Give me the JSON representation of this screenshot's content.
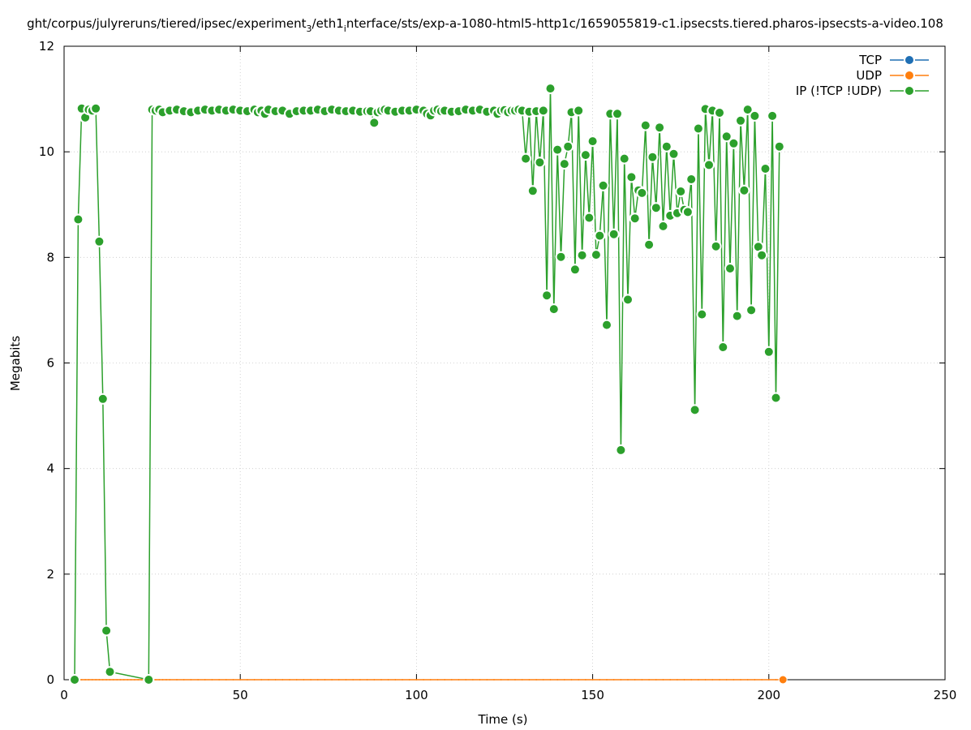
{
  "chart_data": {
    "type": "line",
    "title": "ght/corpus/julyreruns/tiered/ipsec/experiment",
    "title_sub": "3",
    "title_mid": "/eth1",
    "title_sub2": "i",
    "title_end": "nterface/sts/exp-a-1080-html5-http1c/1659055819-c1.ipsecsts.tiered.pharos-ipsecsts-a-video.108",
    "xlabel": "Time (s)",
    "ylabel": "Megabits",
    "xlim": [
      0,
      250
    ],
    "ylim": [
      0,
      12
    ],
    "xticks": [
      0,
      50,
      100,
      150,
      200,
      250
    ],
    "yticks": [
      0,
      2,
      4,
      6,
      8,
      10,
      12
    ],
    "grid": true,
    "legend_position": "top-right",
    "series": [
      {
        "name": "TCP",
        "color": "#1f6fb4",
        "x": [],
        "y": []
      },
      {
        "name": "UDP",
        "color": "#ff7f0e",
        "x": [
          4,
          5,
          6,
          7,
          8,
          9,
          10,
          11,
          12,
          13,
          14,
          15,
          16,
          17,
          18,
          19,
          20,
          21,
          22,
          23,
          24,
          25,
          26,
          27,
          28,
          29,
          30,
          32,
          34,
          36,
          38,
          40,
          42,
          44,
          46,
          48,
          50,
          52,
          54,
          56,
          58,
          60,
          62,
          64,
          66,
          68,
          70,
          72,
          74,
          76,
          78,
          80,
          82,
          84,
          86,
          88,
          90,
          92,
          94,
          96,
          98,
          100,
          102,
          104,
          106,
          108,
          110,
          112,
          114,
          116,
          118,
          120,
          122,
          124,
          126,
          128,
          130,
          132,
          134,
          136,
          138,
          140,
          142,
          144,
          146,
          148,
          150,
          152,
          154,
          156,
          158,
          160,
          162,
          164,
          166,
          168,
          170,
          172,
          174,
          176,
          178,
          180,
          182,
          184,
          186,
          188,
          190,
          192,
          194,
          196,
          198,
          200,
          202,
          204
        ],
        "y": [
          0,
          0,
          0,
          0,
          0,
          0,
          0,
          0,
          0,
          0,
          0,
          0,
          0,
          0,
          0,
          0,
          0,
          0,
          0,
          0,
          0,
          0,
          0,
          0,
          0,
          0,
          0,
          0,
          0,
          0,
          0,
          0,
          0,
          0,
          0,
          0,
          0,
          0,
          0,
          0,
          0,
          0,
          0,
          0,
          0,
          0,
          0,
          0,
          0,
          0,
          0,
          0,
          0,
          0,
          0,
          0,
          0,
          0,
          0,
          0,
          0,
          0,
          0,
          0,
          0,
          0,
          0,
          0,
          0,
          0,
          0,
          0,
          0,
          0,
          0,
          0,
          0,
          0,
          0,
          0,
          0,
          0,
          0,
          0,
          0,
          0,
          0,
          0,
          0,
          0,
          0,
          0,
          0,
          0,
          0,
          0,
          0,
          0,
          0,
          0,
          0,
          0,
          0,
          0,
          0,
          0,
          0,
          0,
          0,
          0,
          0,
          0,
          0,
          0
        ]
      },
      {
        "name": "IP (!TCP  !UDP)",
        "color": "#2ca02c",
        "x": [
          3,
          4,
          5,
          6,
          7,
          8,
          9,
          10,
          11,
          12,
          13,
          24,
          25,
          26,
          27,
          28,
          30,
          32,
          34,
          36,
          38,
          40,
          42,
          44,
          46,
          48,
          50,
          52,
          54,
          55,
          56,
          57,
          58,
          60,
          62,
          64,
          66,
          68,
          70,
          72,
          74,
          76,
          78,
          80,
          82,
          84,
          86,
          87,
          88,
          89,
          90,
          91,
          92,
          94,
          96,
          98,
          100,
          102,
          103,
          104,
          105,
          106,
          107,
          108,
          110,
          112,
          114,
          116,
          118,
          120,
          122,
          123,
          124,
          125,
          126,
          127,
          128,
          129,
          130,
          131,
          132,
          133,
          134,
          135,
          136,
          137,
          138,
          139,
          140,
          141,
          142,
          143,
          144,
          145,
          146,
          147,
          148,
          149,
          150,
          151,
          152,
          153,
          154,
          155,
          156,
          157,
          158,
          159,
          160,
          161,
          162,
          163,
          164,
          165,
          166,
          167,
          168,
          169,
          170,
          171,
          172,
          173,
          174,
          175,
          176,
          177,
          178,
          179,
          180,
          181,
          182,
          183,
          184,
          185,
          186,
          187,
          188,
          189,
          190,
          191,
          192,
          193,
          194,
          195,
          196,
          197,
          198,
          199,
          200,
          201,
          202,
          203
        ],
        "y": [
          0,
          8.72,
          10.82,
          10.65,
          10.8,
          10.78,
          10.82,
          8.3,
          5.32,
          0.93,
          0.15,
          0,
          10.8,
          10.78,
          10.8,
          10.75,
          10.78,
          10.8,
          10.77,
          10.75,
          10.78,
          10.8,
          10.78,
          10.8,
          10.78,
          10.8,
          10.78,
          10.77,
          10.8,
          10.75,
          10.78,
          10.72,
          10.8,
          10.77,
          10.78,
          10.72,
          10.77,
          10.78,
          10.78,
          10.8,
          10.77,
          10.8,
          10.78,
          10.77,
          10.78,
          10.76,
          10.77,
          10.77,
          10.55,
          10.75,
          10.78,
          10.8,
          10.78,
          10.76,
          10.78,
          10.78,
          10.8,
          10.78,
          10.72,
          10.69,
          10.78,
          10.8,
          10.77,
          10.78,
          10.76,
          10.77,
          10.8,
          10.78,
          10.8,
          10.76,
          10.78,
          10.72,
          10.78,
          10.79,
          10.75,
          10.78,
          10.78,
          10.8,
          10.78,
          9.87,
          10.76,
          9.26,
          10.77,
          9.8,
          10.78,
          7.28,
          11.2,
          7.02,
          10.04,
          8.01,
          9.77,
          10.1,
          10.75,
          7.77,
          10.78,
          8.04,
          9.94,
          8.75,
          10.2,
          8.05,
          8.41,
          9.36,
          6.72,
          10.72,
          8.44,
          10.72,
          4.35,
          9.87,
          7.2,
          9.52,
          8.74,
          9.27,
          9.22,
          10.5,
          8.24,
          9.9,
          8.94,
          10.46,
          8.59,
          10.1,
          8.79,
          9.96,
          8.84,
          9.25,
          8.9,
          8.86,
          9.48,
          5.11,
          10.44,
          6.92,
          10.81,
          9.75,
          10.78,
          8.21,
          10.74,
          6.3,
          10.29,
          7.79,
          10.16,
          6.89,
          10.59,
          9.27,
          10.8,
          7.0,
          10.68,
          8.2,
          8.04,
          9.68,
          6.21,
          10.68,
          5.34,
          10.1
        ]
      }
    ]
  }
}
